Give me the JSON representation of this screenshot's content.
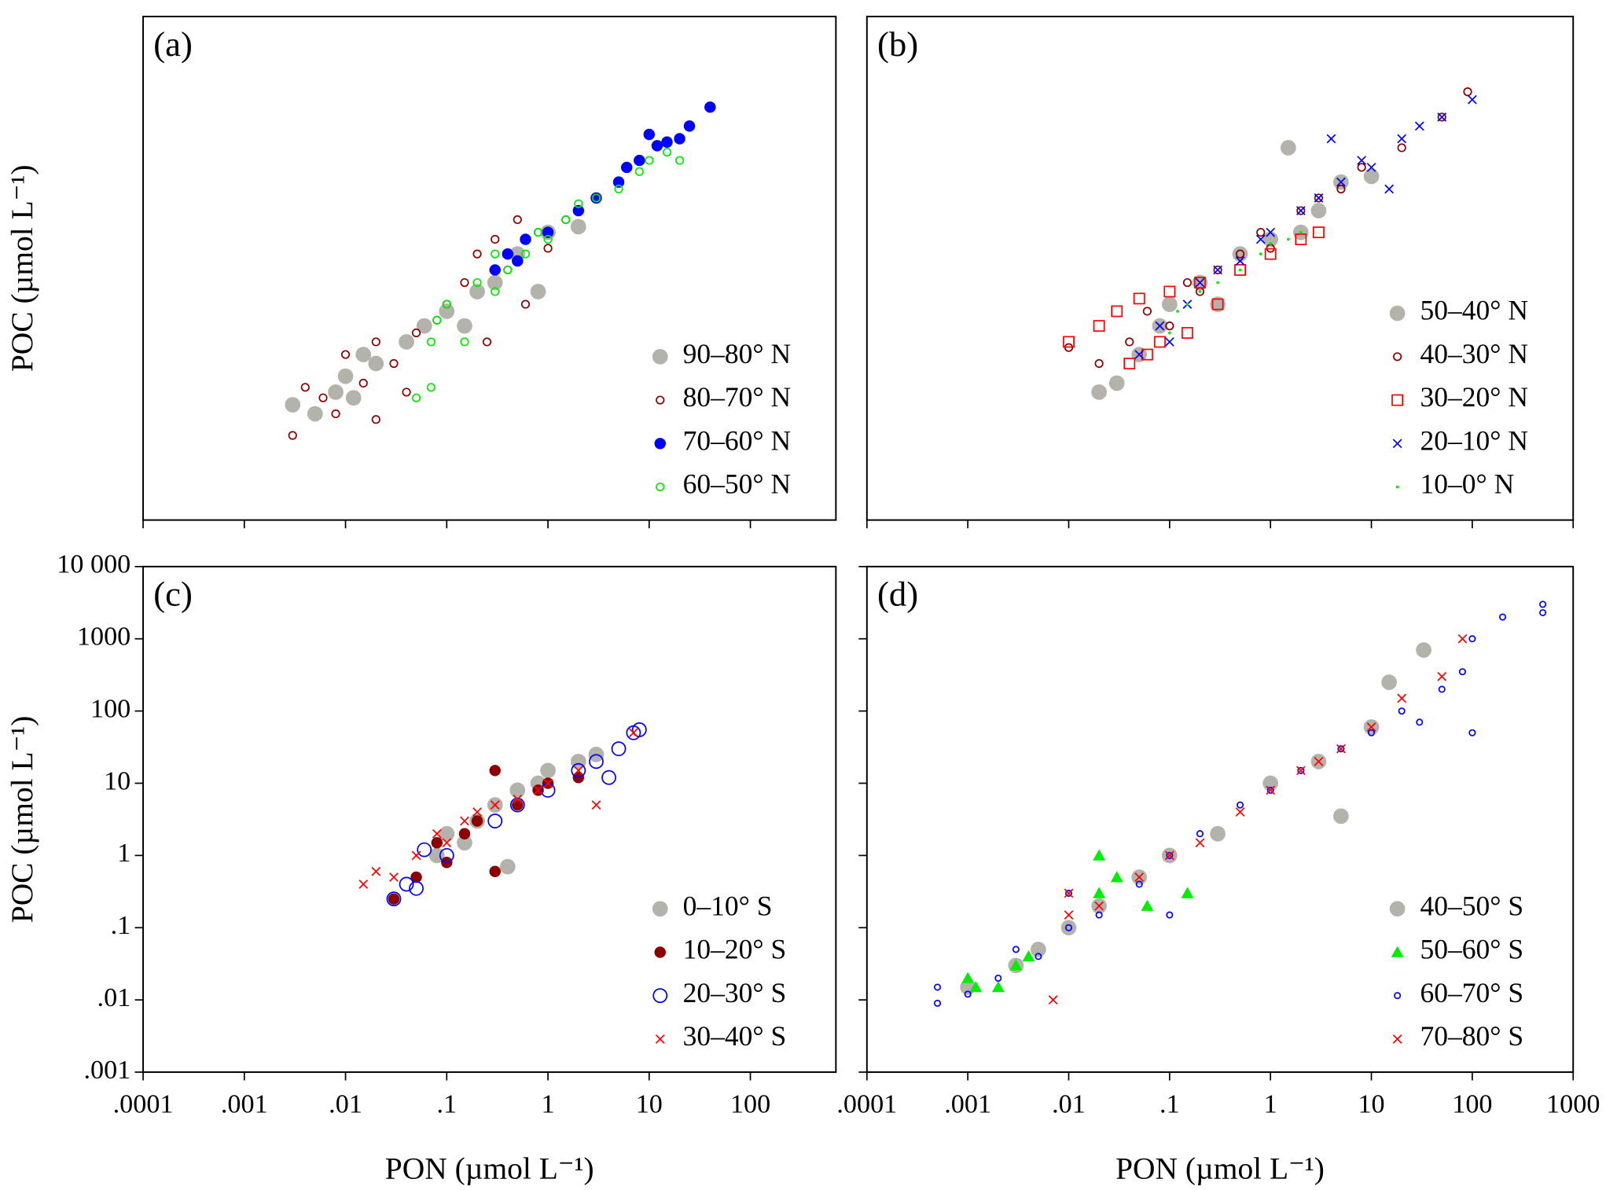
{
  "chart_data": [
    {
      "type": "scatter",
      "title": "(a)",
      "ylabel": "POC (µmol L⁻¹)",
      "xscale": "log",
      "yscale": "log",
      "xlim": [
        0.0001,
        700
      ],
      "ylim": [
        0.001,
        10000
      ],
      "legend": "lower right",
      "series": [
        {
          "name": "90–80° N",
          "color": "#b3b3ab",
          "marker": "big-disc",
          "x": [
            0.003,
            0.005,
            0.008,
            0.01,
            0.015,
            0.02,
            0.04,
            0.06,
            0.1,
            0.15,
            0.2,
            0.3,
            0.5,
            0.8,
            1,
            2,
            0.012
          ],
          "values": [
            0.04,
            0.03,
            0.06,
            0.1,
            0.2,
            0.15,
            0.3,
            0.5,
            0.8,
            0.5,
            1.5,
            2,
            5,
            1.5,
            10,
            12,
            0.05
          ]
        },
        {
          "name": "80–70° N",
          "color": "#8b0000",
          "marker": "ring",
          "x": [
            0.003,
            0.004,
            0.006,
            0.008,
            0.01,
            0.015,
            0.02,
            0.03,
            0.05,
            0.08,
            0.1,
            0.15,
            0.2,
            0.25,
            0.3,
            0.4,
            0.5,
            0.6,
            0.8,
            1,
            1.5,
            2,
            0.04,
            0.02
          ],
          "values": [
            0.015,
            0.07,
            0.05,
            0.03,
            0.2,
            0.08,
            0.3,
            0.15,
            0.4,
            0.6,
            1,
            2,
            5,
            0.3,
            8,
            3,
            15,
            1,
            10,
            6,
            15,
            20,
            0.06,
            0.025
          ]
        },
        {
          "name": "70–60° N",
          "color": "#0000ff",
          "marker": "disc",
          "x": [
            0.3,
            0.4,
            0.5,
            0.6,
            1,
            2,
            3,
            5,
            6,
            8,
            10,
            15,
            20,
            25,
            40,
            12
          ],
          "values": [
            3,
            5,
            4,
            8,
            10,
            20,
            30,
            50,
            80,
            100,
            230,
            180,
            200,
            300,
            550,
            160
          ]
        },
        {
          "name": "60–50° N",
          "color": "#00ee00",
          "marker": "ring",
          "x": [
            0.05,
            0.07,
            0.08,
            0.1,
            0.15,
            0.2,
            0.3,
            0.4,
            0.6,
            0.8,
            1,
            1.5,
            2,
            3,
            5,
            8,
            10,
            15,
            20,
            0.07,
            0.3
          ],
          "values": [
            0.05,
            0.3,
            0.6,
            1,
            0.3,
            2,
            1.5,
            3,
            5,
            10,
            8,
            15,
            25,
            30,
            40,
            70,
            100,
            130,
            100,
            0.07,
            5
          ]
        }
      ]
    },
    {
      "type": "scatter",
      "title": "(b)",
      "xscale": "log",
      "yscale": "log",
      "xlim": [
        0.0001,
        1000
      ],
      "ylim": [
        0.001,
        10000
      ],
      "legend": "lower right",
      "series": [
        {
          "name": "50–40° N",
          "color": "#b3b3ab",
          "marker": "big-disc",
          "x": [
            0.02,
            0.03,
            0.05,
            0.08,
            0.1,
            0.2,
            0.3,
            0.5,
            1,
            2,
            3,
            5,
            10,
            1.5
          ],
          "values": [
            0.06,
            0.08,
            0.2,
            0.5,
            1,
            2,
            1,
            5,
            8,
            10,
            20,
            50,
            60,
            150
          ]
        },
        {
          "name": "40–30° N",
          "color": "#8b0000",
          "marker": "ring",
          "x": [
            0.01,
            0.02,
            0.04,
            0.06,
            0.1,
            0.15,
            0.2,
            0.3,
            0.5,
            0.8,
            1,
            2,
            3,
            5,
            8,
            20,
            50,
            90
          ],
          "values": [
            0.25,
            0.15,
            0.3,
            0.8,
            0.5,
            2,
            1.5,
            3,
            5,
            10,
            6,
            20,
            30,
            40,
            80,
            150,
            400,
            900
          ]
        },
        {
          "name": "30–20° N",
          "color": "#ff0000",
          "marker": "square",
          "x": [
            0.01,
            0.02,
            0.03,
            0.05,
            0.06,
            0.08,
            0.1,
            0.15,
            0.2,
            0.3,
            0.5,
            1,
            2,
            3,
            0.04
          ],
          "values": [
            0.3,
            0.5,
            0.8,
            1.2,
            0.2,
            0.3,
            1.5,
            0.4,
            2,
            1,
            3,
            5,
            8,
            10,
            0.15
          ]
        },
        {
          "name": "20–10° N",
          "color": "#0000ff",
          "marker": "cross",
          "x": [
            0.05,
            0.08,
            0.1,
            0.15,
            0.2,
            0.3,
            0.5,
            0.8,
            1,
            2,
            3,
            5,
            8,
            10,
            20,
            30,
            50,
            100,
            4,
            15
          ],
          "values": [
            0.2,
            0.5,
            0.3,
            1,
            2,
            3,
            4,
            8,
            10,
            20,
            30,
            50,
            100,
            80,
            200,
            300,
            400,
            700,
            200,
            40
          ]
        },
        {
          "name": "10–0° N",
          "color": "#00ee00",
          "marker": "dot",
          "x": [
            0.1,
            0.15,
            0.2,
            0.3,
            0.5,
            0.8,
            1,
            1.5,
            2,
            0.12
          ],
          "values": [
            0.4,
            1,
            1.5,
            2,
            3,
            5,
            7,
            8,
            10,
            0.8
          ]
        }
      ]
    },
    {
      "type": "scatter",
      "title": "(c)",
      "ylabel": "POC (µmol L⁻¹)",
      "xlabel": "PON (µmol L⁻¹)",
      "xscale": "log",
      "yscale": "log",
      "xlim": [
        0.0001,
        700
      ],
      "ylim": [
        0.001,
        10000
      ],
      "legend": "lower right",
      "xticks": [
        {
          "value": 0.0001,
          "label": ".0001"
        },
        {
          "value": 0.001,
          "label": ".001"
        },
        {
          "value": 0.01,
          "label": ".01"
        },
        {
          "value": 0.1,
          "label": ".1"
        },
        1,
        10,
        100
      ],
      "yticks": [
        {
          "value": 0.001,
          "label": ".001"
        },
        {
          "value": 0.01,
          "label": ".01"
        },
        {
          "value": 0.1,
          "label": ".1"
        },
        1,
        10,
        100,
        1000,
        {
          "value": 10000,
          "label": "10 000"
        }
      ],
      "series": [
        {
          "name": "0–10° S",
          "color": "#b3b3ab",
          "marker": "big-disc",
          "x": [
            0.08,
            0.1,
            0.15,
            0.2,
            0.3,
            0.5,
            0.8,
            1,
            2,
            3,
            0.4
          ],
          "values": [
            1,
            2,
            1.5,
            3,
            5,
            8,
            10,
            15,
            20,
            25,
            0.7
          ]
        },
        {
          "name": "10–20° S",
          "color": "#8b0000",
          "marker": "disc",
          "x": [
            0.03,
            0.05,
            0.08,
            0.1,
            0.15,
            0.2,
            0.3,
            0.3,
            0.5,
            0.8,
            1,
            2
          ],
          "values": [
            0.25,
            0.5,
            1.5,
            0.8,
            2,
            3,
            15,
            0.6,
            5,
            8,
            10,
            12
          ]
        },
        {
          "name": "20–30° S",
          "color": "#0000ff",
          "marker": "big-ring",
          "x": [
            0.03,
            0.04,
            0.05,
            0.06,
            0.1,
            0.3,
            0.5,
            1,
            2,
            3,
            5,
            7,
            8,
            4
          ],
          "values": [
            0.25,
            0.4,
            0.35,
            1.2,
            1,
            3,
            5,
            8,
            15,
            20,
            30,
            50,
            55,
            12
          ]
        },
        {
          "name": "30–40° S",
          "color": "#ff0000",
          "marker": "cross",
          "x": [
            0.015,
            0.02,
            0.03,
            0.05,
            0.08,
            0.1,
            0.15,
            0.2,
            0.3,
            0.5,
            0.8,
            1,
            2,
            3,
            7
          ],
          "values": [
            0.4,
            0.6,
            0.5,
            1,
            2,
            1.5,
            3,
            4,
            5,
            6,
            8,
            10,
            15,
            5,
            50
          ]
        }
      ]
    },
    {
      "type": "scatter",
      "title": "(d)",
      "xlabel": "PON (µmol L⁻¹)",
      "xscale": "log",
      "yscale": "log",
      "xlim": [
        0.0001,
        1000
      ],
      "ylim": [
        0.001,
        10000
      ],
      "legend": "lower right",
      "xticks": [
        {
          "value": 0.0001,
          "label": ".0001"
        },
        {
          "value": 0.001,
          "label": ".001"
        },
        {
          "value": 0.01,
          "label": ".01"
        },
        {
          "value": 0.1,
          "label": ".1"
        },
        1,
        10,
        100,
        1000
      ],
      "series": [
        {
          "name": "40–50° S",
          "color": "#b3b3ab",
          "marker": "big-disc",
          "x": [
            0.001,
            0.003,
            0.005,
            0.01,
            0.02,
            0.05,
            0.1,
            0.3,
            1,
            3,
            10,
            15,
            33,
            5
          ],
          "values": [
            0.015,
            0.03,
            0.05,
            0.1,
            0.2,
            0.5,
            1,
            2,
            10,
            20,
            60,
            250,
            700,
            3.5
          ]
        },
        {
          "name": "50–60° S",
          "color": "#00ee00",
          "marker": "triangle",
          "x": [
            0.001,
            0.0012,
            0.002,
            0.003,
            0.004,
            0.02,
            0.02,
            0.03,
            0.06,
            0.15
          ],
          "values": [
            0.02,
            0.015,
            0.015,
            0.03,
            0.04,
            1,
            0.3,
            0.5,
            0.2,
            0.3
          ]
        },
        {
          "name": "60–70° S",
          "color": "#0000ff",
          "marker": "small-ring",
          "x": [
            0.0005,
            0.0005,
            0.001,
            0.002,
            0.003,
            0.005,
            0.01,
            0.02,
            0.05,
            0.1,
            0.2,
            0.5,
            1,
            2,
            5,
            10,
            20,
            50,
            100,
            200,
            500,
            500,
            30,
            80,
            100,
            0.1,
            0.01
          ],
          "values": [
            0.009,
            0.015,
            0.012,
            0.02,
            0.05,
            0.04,
            0.1,
            0.15,
            0.4,
            1,
            2,
            5,
            8,
            15,
            30,
            50,
            100,
            200,
            1000,
            2000,
            3000,
            2300,
            70,
            350,
            50,
            0.15,
            0.3
          ]
        },
        {
          "name": "70–80° S",
          "color": "#ff0000",
          "marker": "cross",
          "x": [
            0.007,
            0.01,
            0.01,
            0.02,
            0.05,
            0.1,
            0.2,
            0.5,
            1,
            2,
            5,
            10,
            20,
            50,
            80,
            3
          ],
          "values": [
            0.01,
            0.15,
            0.3,
            0.2,
            0.5,
            1,
            1.5,
            4,
            8,
            15,
            30,
            60,
            150,
            300,
            1000,
            20
          ]
        }
      ]
    }
  ]
}
